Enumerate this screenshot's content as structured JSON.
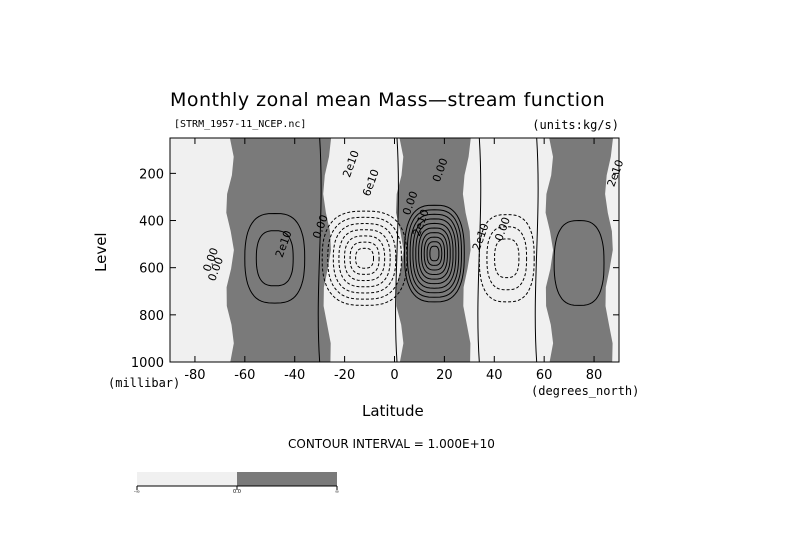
{
  "title": "Monthly zonal mean Mass—stream function",
  "file_label": "[STRM_1957-11_NCEP.nc]",
  "units_label": "(units:kg/s)",
  "interval_label": "CONTOUR INTERVAL = 1.000E+10",
  "chart_data": {
    "type": "contour",
    "title": "Monthly zonal mean Mass—stream function",
    "xlabel": "Latitude",
    "ylabel": "Level",
    "x_unit": "(degrees_north)",
    "y_unit": "(millibar)",
    "xlim": [
      -90,
      90
    ],
    "ylim": [
      1000,
      50
    ],
    "y_reversed": true,
    "xticks": [
      -80,
      -60,
      -40,
      -20,
      0,
      20,
      40,
      60,
      80
    ],
    "xtick_labels": [
      "-80",
      "-60",
      "-40",
      "-20",
      "0",
      "20",
      "40",
      "60",
      "80"
    ],
    "yticks": [
      200,
      400,
      600,
      800,
      1000
    ],
    "contour_interval": 10000000000,
    "contour_labels": [
      "0.00",
      "2e10",
      "0.00",
      "2e10",
      "6e10",
      "0.00",
      "2e10",
      "0.00",
      "2e10",
      "0.00",
      "2e10",
      "0.00"
    ],
    "fill_colors": {
      "negative": "#f0f0f0",
      "positive": "#7a7a7a"
    },
    "colorbar": {
      "tick_labels": [
        "-∞",
        "0.0",
        "∞"
      ]
    },
    "cells": [
      {
        "center": [
          -48,
          560
        ],
        "half_width": [
          12,
          380
        ],
        "sign": "positive",
        "levels": 2
      },
      {
        "center": [
          -12,
          560
        ],
        "half_width": [
          17,
          400
        ],
        "sign": "negative",
        "levels": 7
      },
      {
        "center": [
          16,
          540
        ],
        "half_width": [
          12,
          410
        ],
        "sign": "positive",
        "levels": 10
      },
      {
        "center": [
          45,
          560
        ],
        "half_width": [
          11,
          370
        ],
        "sign": "negative",
        "levels": 3
      },
      {
        "center": [
          74,
          580
        ],
        "half_width": [
          10,
          360
        ],
        "sign": "positive",
        "levels": 1
      }
    ]
  }
}
